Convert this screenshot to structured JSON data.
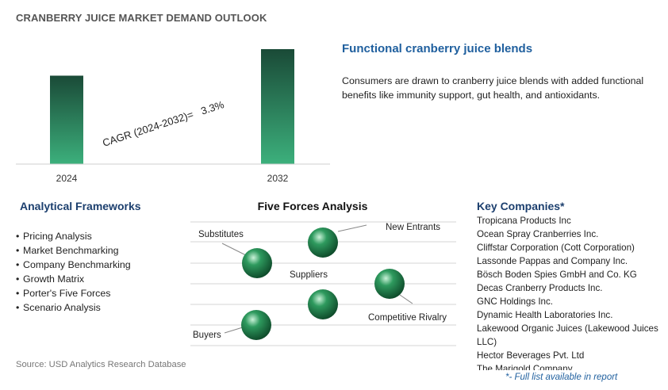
{
  "page_title": "CRANBERRY JUICE MARKET DEMAND OUTLOOK",
  "chart_data": {
    "type": "bar",
    "categories": [
      "2024",
      "2032"
    ],
    "values": [
      1.0,
      1.3
    ],
    "annotation": "CAGR (2024-2032)=   3.3%",
    "bar_color_top": "#1a4a37",
    "bar_color_bottom": "#3cb07c"
  },
  "feature": {
    "title": "Functional cranberry juice blends",
    "text": "Consumers are drawn to cranberry juice blends with added functional benefits like immunity support, gut health, and antioxidants."
  },
  "frameworks": {
    "title": "Analytical Frameworks",
    "items": [
      "Pricing Analysis",
      "Market Benchmarking",
      "Company Benchmarking",
      "Growth Matrix",
      "Porter's Five Forces",
      "Scenario Analysis"
    ]
  },
  "five_forces": {
    "title": "Five Forces Analysis",
    "labels": {
      "substitutes": "Substitutes",
      "new_entrants": "New Entrants",
      "suppliers": "Suppliers",
      "competitive_rivalry": "Competitive Rivalry",
      "buyers": "Buyers"
    },
    "sphere_color": "#2e9a5e"
  },
  "companies": {
    "title": "Key Companies*",
    "items": [
      "Tropicana Products Inc",
      "Ocean Spray Cranberries Inc.",
      "Cliffstar Corporation (Cott Corporation)",
      "Lassonde Pappas and Company Inc.",
      "Bösch Boden Spies GmbH and Co. KG",
      "Decas Cranberry Products Inc.",
      "GNC Holdings Inc.",
      "Dynamic Health Laboratories Inc.",
      "Lakewood Organic Juices (Lakewood Juices LLC)",
      "Hector Beverages Pvt. Ltd",
      "The Marigold Company"
    ],
    "note": "*- Full list available in report"
  },
  "source": "Source: USD Analytics Research Database"
}
